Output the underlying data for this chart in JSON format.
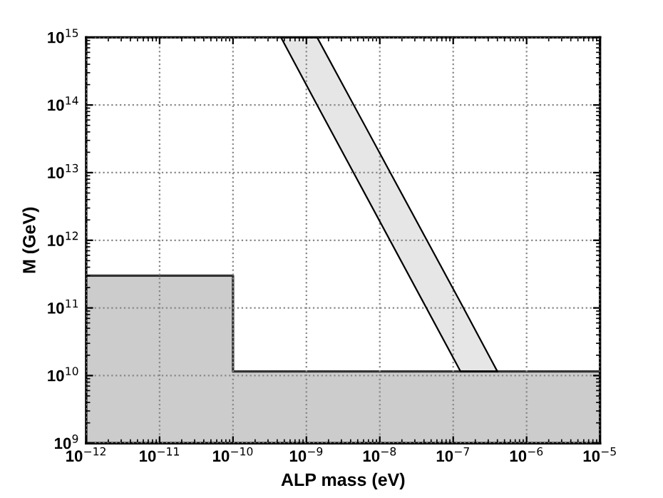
{
  "chart_data": {
    "type": "area",
    "xlabel": "ALP mass (eV)",
    "ylabel": "M (GeV)",
    "log": "xy",
    "grid": true,
    "marker": "none",
    "line_style": "solid",
    "xlim": [
      1e-12,
      1e-05
    ],
    "ylim": [
      1000000000.0,
      1000000000000000.0
    ],
    "xticks": [
      {
        "value": 1e-12,
        "label": "10$^{−12}$"
      },
      {
        "value": 1e-11,
        "label": "10$^{−11}$"
      },
      {
        "value": 1e-10,
        "label": "10$^{−10}$"
      },
      {
        "value": 1e-09,
        "label": "10$^{−9}$"
      },
      {
        "value": 1e-08,
        "label": "10$^{−8}$"
      },
      {
        "value": 1e-07,
        "label": "10$^{−7}$"
      },
      {
        "value": 1e-06,
        "label": "10$^{−6}$"
      },
      {
        "value": 1e-05,
        "label": "10$^{−5}$"
      }
    ],
    "yticks": [
      {
        "value": 1000000000.0,
        "label": "10$^{9}$"
      },
      {
        "value": 10000000000.0,
        "label": "10$^{10}$"
      },
      {
        "value": 100000000000.0,
        "label": "10$^{11}$"
      },
      {
        "value": 1000000000000.0,
        "label": "10$^{12}$"
      },
      {
        "value": 10000000000000.0,
        "label": "10$^{13}$"
      },
      {
        "value": 100000000000000.0,
        "label": "10$^{14}$"
      },
      {
        "value": 1000000000000000.0,
        "label": "10$^{15}$"
      }
    ],
    "series": [
      {
        "color": "#cccccc",
        "x": [
          1e-12,
          1e-10,
          1e-10,
          1e-05
        ],
        "values": [
          300000000000.0,
          300000000000.0,
          11500000000.0,
          11500000000.0
        ]
      },
      {
        "type": "line",
        "color": "#000000",
        "x": [
          4.5e-10,
          1.4e-09,
          1.26e-07,
          4e-07
        ],
        "values": [
          1000000000000000.0,
          100000000000000.0,
          11500000000.0,
          11500000000.0
        ],
        "lower": [
          1000000000000000.0,
          100000000000000.0,
          11500000000.0,
          11500000000.0
        ],
        "upper": [
          1000000000000000.0,
          1000000000000000.0,
          120000000000.0,
          11500000000.0
        ]
      }
    ]
  }
}
